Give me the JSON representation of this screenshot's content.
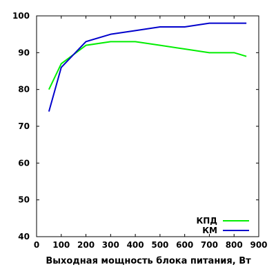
{
  "chart_data": {
    "type": "line",
    "title": "",
    "xlabel": "Выходная мощность блока питания, Вт",
    "ylabel": "",
    "xlim": [
      0,
      900
    ],
    "ylim": [
      40,
      100
    ],
    "xticks": [
      0,
      100,
      200,
      300,
      400,
      500,
      600,
      700,
      800,
      900
    ],
    "yticks": [
      40,
      50,
      60,
      70,
      80,
      90,
      100
    ],
    "grid": false,
    "legend_position": "bottom-right",
    "series": [
      {
        "name": "КПД",
        "color": "#00ee00",
        "x": [
          50,
          100,
          200,
          300,
          400,
          500,
          600,
          700,
          800,
          850
        ],
        "y": [
          80,
          87,
          92,
          93,
          93,
          92,
          91,
          90,
          90,
          89
        ]
      },
      {
        "name": "КМ",
        "color": "#0000cc",
        "x": [
          50,
          100,
          200,
          300,
          400,
          500,
          600,
          700,
          800,
          850
        ],
        "y": [
          74,
          86,
          93,
          95,
          96,
          97,
          97,
          98,
          98,
          98
        ]
      }
    ]
  }
}
